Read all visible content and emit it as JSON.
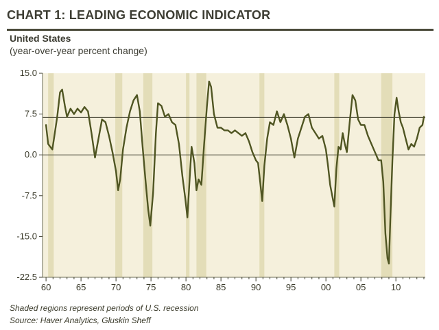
{
  "header": {
    "title": "CHART 1: LEADING ECONOMIC INDICATOR",
    "subtitle": "United States",
    "units": "(year-over-year percent change)"
  },
  "footer": {
    "note": "Shaded regions represent periods of U.S. recession",
    "source": "Source: Haver Analytics, Gluskin Sheff"
  },
  "colors": {
    "plot_bg": "#f5f0dc",
    "recession": "#e3ddb8",
    "line": "#4f5522",
    "zero_line": "#3a3a2a",
    "ref_line": "#3a3a2a"
  },
  "chart_data": {
    "type": "line",
    "title": "LEADING ECONOMIC INDICATOR",
    "xlabel": "",
    "ylabel": "year-over-year percent change",
    "xlim": [
      1959.5,
      2014.2
    ],
    "ylim": [
      -22.5,
      15.0
    ],
    "y_ticks": [
      15.0,
      7.5,
      0.0,
      -7.5,
      -15.0,
      -22.5
    ],
    "y_tick_labels": [
      "15.0",
      "7.5",
      "0.0",
      "-7.5",
      "-15.0",
      "-22.5"
    ],
    "x_ticks": [
      1960,
      1965,
      1970,
      1975,
      1980,
      1985,
      1990,
      1995,
      2000,
      2005,
      2010
    ],
    "x_tick_labels": [
      "60",
      "65",
      "70",
      "75",
      "80",
      "85",
      "90",
      "95",
      "00",
      "05",
      "10"
    ],
    "reference_lines": [
      {
        "name": "zero",
        "value": 0.0
      },
      {
        "name": "level",
        "value": 6.9
      }
    ],
    "recessions": [
      [
        1960.3,
        1961.1
      ],
      [
        1969.9,
        1970.9
      ],
      [
        1973.9,
        1975.2
      ],
      [
        1980.0,
        1980.5
      ],
      [
        1981.5,
        1982.9
      ],
      [
        1990.5,
        1991.2
      ],
      [
        2001.2,
        2001.9
      ],
      [
        2007.9,
        2009.5
      ]
    ],
    "series": [
      {
        "name": "Leading Economic Indicator",
        "x": [
          1960.0,
          1960.3,
          1960.6,
          1960.9,
          1961.2,
          1961.6,
          1962.0,
          1962.3,
          1962.7,
          1963.0,
          1963.5,
          1964.0,
          1964.5,
          1965.0,
          1965.5,
          1966.0,
          1966.5,
          1967.0,
          1967.5,
          1968.0,
          1968.5,
          1969.0,
          1969.5,
          1970.0,
          1970.3,
          1970.6,
          1971.0,
          1971.5,
          1972.0,
          1972.5,
          1973.0,
          1973.4,
          1973.8,
          1974.2,
          1974.6,
          1974.9,
          1975.3,
          1975.7,
          1976.0,
          1976.5,
          1977.0,
          1977.5,
          1978.0,
          1978.5,
          1979.0,
          1979.5,
          1979.9,
          1980.2,
          1980.5,
          1980.8,
          1981.2,
          1981.5,
          1981.8,
          1982.2,
          1982.6,
          1983.0,
          1983.3,
          1983.6,
          1984.0,
          1984.5,
          1985.0,
          1985.5,
          1986.0,
          1986.5,
          1987.0,
          1987.5,
          1988.0,
          1988.5,
          1989.0,
          1989.5,
          1990.0,
          1990.3,
          1990.6,
          1990.9,
          1991.2,
          1991.6,
          1992.0,
          1992.5,
          1993.0,
          1993.5,
          1994.0,
          1994.5,
          1995.0,
          1995.5,
          1996.0,
          1996.5,
          1997.0,
          1997.5,
          1998.0,
          1998.5,
          1999.0,
          1999.5,
          2000.0,
          2000.3,
          2000.6,
          2000.9,
          2001.2,
          2001.5,
          2001.8,
          2002.1,
          2002.4,
          2002.7,
          2003.0,
          2003.4,
          2003.8,
          2004.2,
          2004.6,
          2005.0,
          2005.5,
          2006.0,
          2006.5,
          2007.0,
          2007.5,
          2007.9,
          2008.2,
          2008.5,
          2008.8,
          2009.0,
          2009.2,
          2009.5,
          2009.8,
          2010.1,
          2010.4,
          2010.7,
          2011.0,
          2011.4,
          2011.8,
          2012.2,
          2012.6,
          2013.0,
          2013.4,
          2013.8,
          2014.0
        ],
        "values": [
          5.5,
          2.0,
          1.5,
          1.0,
          3.5,
          7.0,
          11.5,
          12.0,
          9.0,
          7.0,
          8.5,
          7.5,
          8.5,
          7.8,
          8.8,
          8.0,
          4.0,
          -0.5,
          3.0,
          6.5,
          6.0,
          3.5,
          0.5,
          -3.0,
          -6.5,
          -4.5,
          1.0,
          5.0,
          8.0,
          10.0,
          11.0,
          8.0,
          1.5,
          -4.5,
          -10.0,
          -13.0,
          -7.0,
          4.0,
          9.5,
          9.0,
          7.0,
          7.5,
          6.0,
          5.5,
          2.0,
          -4.0,
          -8.0,
          -11.5,
          -5.0,
          1.5,
          -1.5,
          -6.5,
          -4.5,
          -5.5,
          2.0,
          9.0,
          13.5,
          12.5,
          7.5,
          5.0,
          5.0,
          4.5,
          4.5,
          4.0,
          4.5,
          4.0,
          3.5,
          4.0,
          2.5,
          0.5,
          -1.0,
          -1.5,
          -5.0,
          -8.5,
          -2.0,
          3.0,
          6.0,
          5.5,
          8.0,
          6.0,
          7.5,
          5.5,
          3.0,
          -0.5,
          3.0,
          5.0,
          7.0,
          7.5,
          5.0,
          4.0,
          3.0,
          3.5,
          1.0,
          -2.0,
          -5.5,
          -7.5,
          -9.5,
          -2.5,
          1.5,
          1.0,
          4.0,
          2.0,
          0.5,
          6.0,
          11.0,
          10.0,
          6.5,
          5.5,
          5.5,
          3.5,
          2.0,
          0.5,
          -1.0,
          -1.0,
          -5.0,
          -14.5,
          -19.0,
          -20.0,
          -12.0,
          -1.0,
          7.5,
          10.5,
          8.0,
          6.0,
          5.0,
          3.0,
          1.0,
          2.0,
          1.5,
          3.0,
          5.0,
          5.5,
          7.0
        ]
      }
    ]
  }
}
